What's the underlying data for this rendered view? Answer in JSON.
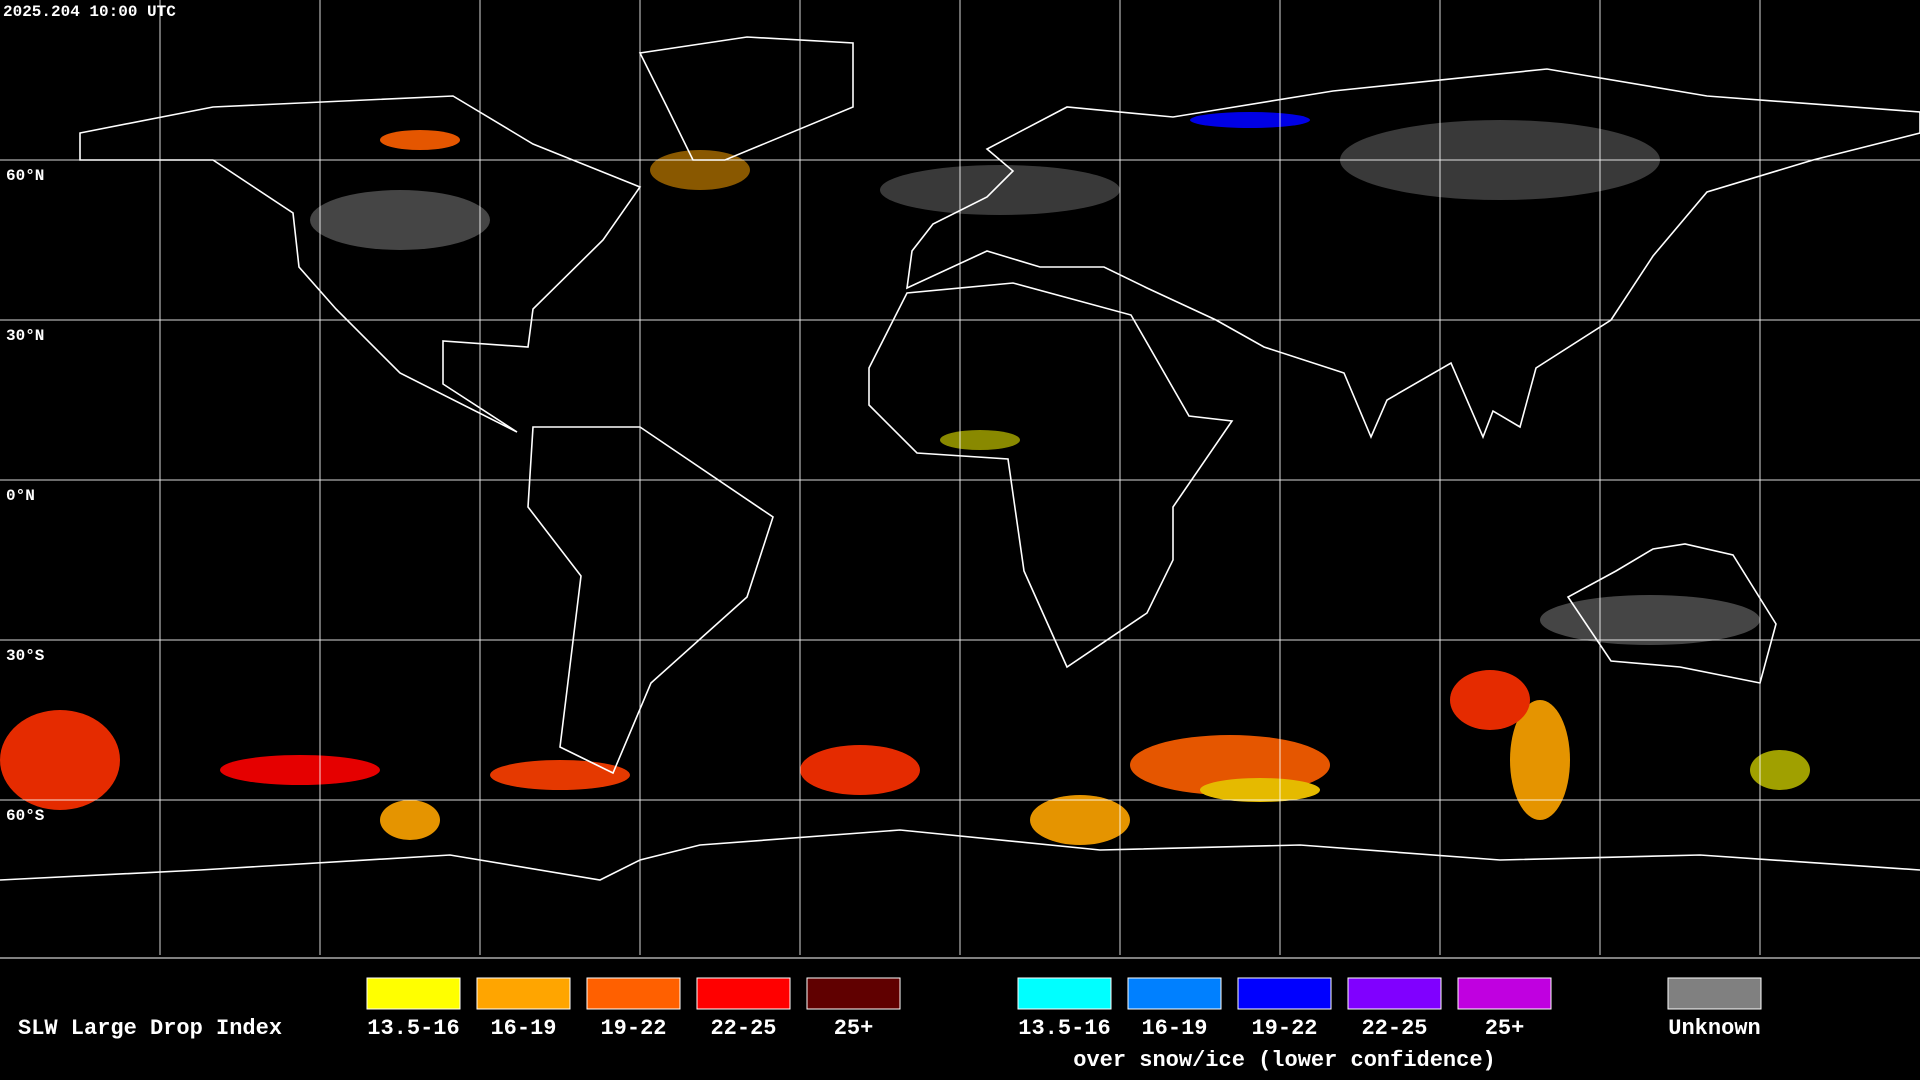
{
  "header": {
    "timestamp": "2025.204 10:00 UTC"
  },
  "map": {
    "lat_labels": [
      "60°N",
      "30°N",
      "0°N",
      "30°S",
      "60°S"
    ]
  },
  "legend": {
    "title": "SLW Large Drop Index",
    "groups": [
      {
        "items": [
          {
            "label": "13.5-16",
            "color": "#ffff00"
          },
          {
            "label": "16-19",
            "color": "#ffa500"
          },
          {
            "label": "19-22",
            "color": "#ff6000"
          },
          {
            "label": "22-25",
            "color": "#ff0000"
          },
          {
            "label": "25+",
            "color": "#600000"
          }
        ]
      },
      {
        "items": [
          {
            "label": "13.5-16",
            "color": "#00ffff"
          },
          {
            "label": "16-19",
            "color": "#0080ff"
          },
          {
            "label": "19-22",
            "color": "#0000ff"
          },
          {
            "label": "22-25",
            "color": "#8000ff"
          },
          {
            "label": "25+",
            "color": "#c000e0"
          }
        ],
        "caption": "over snow/ice (lower confidence)"
      },
      {
        "items": [
          {
            "label": "Unknown",
            "color": "#808080"
          }
        ]
      }
    ]
  }
}
